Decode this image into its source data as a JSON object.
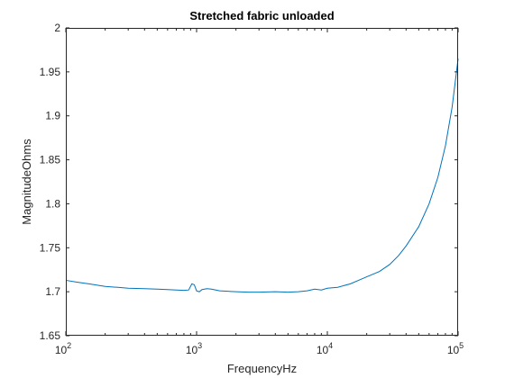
{
  "chart_data": {
    "type": "line",
    "title": "Stretched fabric unloaded",
    "xlabel": "FrequencyHz",
    "ylabel": "MagnitudeOhms",
    "x_scale": "log",
    "xlim": [
      100,
      100000
    ],
    "ylim": [
      1.65,
      2.0
    ],
    "x_ticks": [
      100,
      1000,
      10000,
      100000
    ],
    "x_tick_labels": [
      {
        "base": "10",
        "exp": "2"
      },
      {
        "base": "10",
        "exp": "3"
      },
      {
        "base": "10",
        "exp": "4"
      },
      {
        "base": "10",
        "exp": "5"
      }
    ],
    "y_ticks": [
      1.65,
      1.7,
      1.75,
      1.8,
      1.85,
      1.9,
      1.95,
      2.0
    ],
    "y_tick_labels": [
      "1.65",
      "1.7",
      "1.75",
      "1.8",
      "1.85",
      "1.9",
      "1.95",
      "2"
    ],
    "grid": false,
    "series": [
      {
        "color": "#0072bd",
        "x": [
          100,
          120,
          150,
          200,
          250,
          300,
          400,
          500,
          600,
          700,
          800,
          870,
          920,
          960,
          1000,
          1050,
          1100,
          1200,
          1300,
          1500,
          2000,
          2500,
          3000,
          4000,
          5000,
          6000,
          7000,
          8000,
          9000,
          10000,
          12000,
          15000,
          18000,
          20000,
          25000,
          30000,
          35000,
          40000,
          50000,
          60000,
          70000,
          80000,
          90000,
          100000
        ],
        "y": [
          1.713,
          1.711,
          1.709,
          1.706,
          1.705,
          1.704,
          1.7035,
          1.703,
          1.7025,
          1.702,
          1.7015,
          1.702,
          1.709,
          1.708,
          1.701,
          1.7,
          1.7025,
          1.7035,
          1.703,
          1.701,
          1.7,
          1.6995,
          1.6995,
          1.7,
          1.6995,
          1.7,
          1.701,
          1.703,
          1.702,
          1.704,
          1.705,
          1.709,
          1.714,
          1.717,
          1.723,
          1.731,
          1.741,
          1.752,
          1.774,
          1.8,
          1.83,
          1.866,
          1.91,
          1.965
        ]
      }
    ]
  }
}
